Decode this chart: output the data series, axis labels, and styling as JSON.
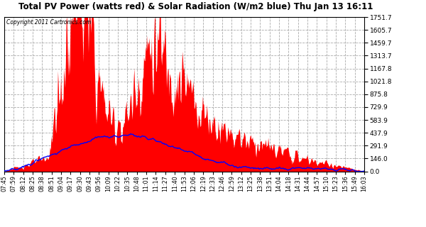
{
  "title": "Total PV Power (watts red) & Solar Radiation (W/m2 blue) Thu Jan 13 16:11",
  "copyright_text": "Copyright 2011 Cartronics.com",
  "background_color": "#ffffff",
  "plot_bg_color": "#ffffff",
  "grid_color": "#aaaaaa",
  "yticks": [
    0.0,
    146.0,
    291.9,
    437.9,
    583.9,
    729.9,
    875.8,
    1021.8,
    1167.8,
    1313.7,
    1459.7,
    1605.7,
    1751.7
  ],
  "ymax": 1751.7,
  "ymin": 0.0,
  "red_color": "#ff0000",
  "blue_color": "#0000ff",
  "x_labels": [
    "07:45",
    "07:59",
    "08:12",
    "08:25",
    "08:38",
    "08:51",
    "09:04",
    "09:17",
    "09:30",
    "09:43",
    "09:56",
    "10:09",
    "10:22",
    "10:35",
    "10:48",
    "11:01",
    "11:14",
    "11:27",
    "11:40",
    "11:53",
    "12:06",
    "12:19",
    "12:33",
    "12:46",
    "12:59",
    "13:12",
    "13:25",
    "13:38",
    "13:51",
    "14:04",
    "14:18",
    "14:31",
    "14:44",
    "14:57",
    "15:10",
    "15:23",
    "15:36",
    "15:49",
    "16:03"
  ]
}
